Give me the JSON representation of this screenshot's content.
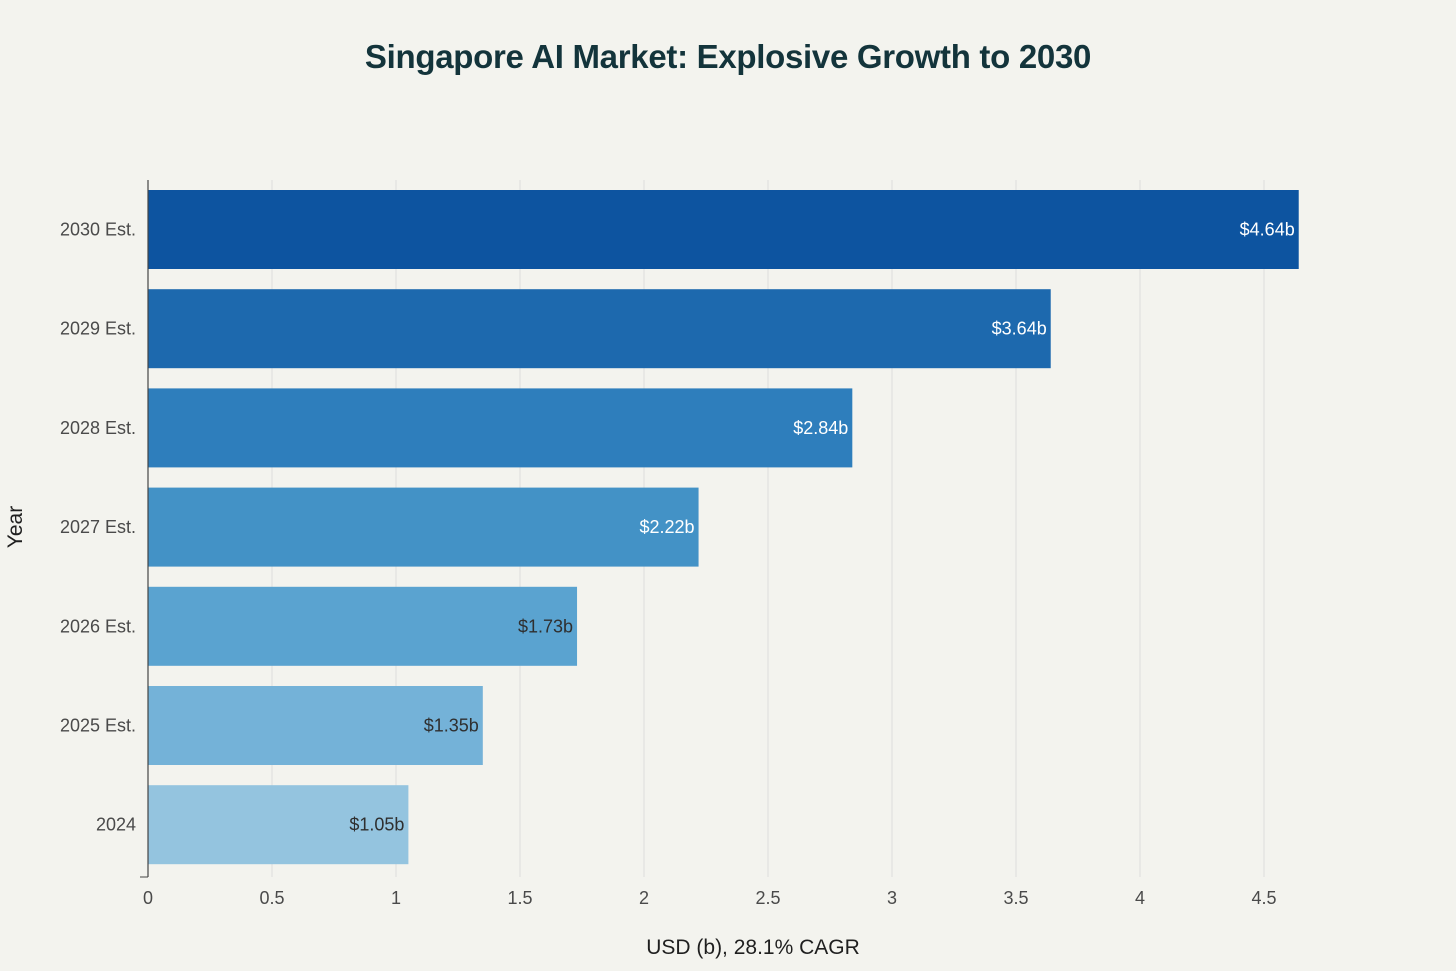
{
  "chart_data": {
    "type": "bar",
    "orientation": "horizontal",
    "title": "Singapore AI Market: Explosive Growth to 2030",
    "xlabel": "USD (b), 28.1% CAGR",
    "ylabel": "Year",
    "xlim": [
      0,
      4.85
    ],
    "xticks": [
      0,
      0.5,
      1,
      1.5,
      2,
      2.5,
      3,
      3.5,
      4,
      4.5
    ],
    "xtick_labels": [
      "0",
      "0.5",
      "1",
      "1.5",
      "2",
      "2.5",
      "3",
      "3.5",
      "4",
      "4.5"
    ],
    "grid": "vertical",
    "legend": "none",
    "categories": [
      "2024",
      "2025 Est.",
      "2026 Est.",
      "2027 Est.",
      "2028 Est.",
      "2029 Est.",
      "2030 Est."
    ],
    "values": [
      1.05,
      1.35,
      1.73,
      2.22,
      2.84,
      3.64,
      4.64
    ],
    "data_labels": [
      "$1.05b",
      "$1.35b",
      "$1.73b",
      "$2.22b",
      "$2.84b",
      "$3.64b",
      "$4.64b"
    ],
    "colors": [
      "#94c4df",
      "#74b2d8",
      "#5aa3d0",
      "#4392c6",
      "#2e7ebc",
      "#1d69ae",
      "#0d54a0"
    ],
    "label_colors": [
      "#2f2f2f",
      "#2f2f2f",
      "#2f2f2f",
      "#ffffff",
      "#ffffff",
      "#ffffff",
      "#ffffff"
    ]
  }
}
